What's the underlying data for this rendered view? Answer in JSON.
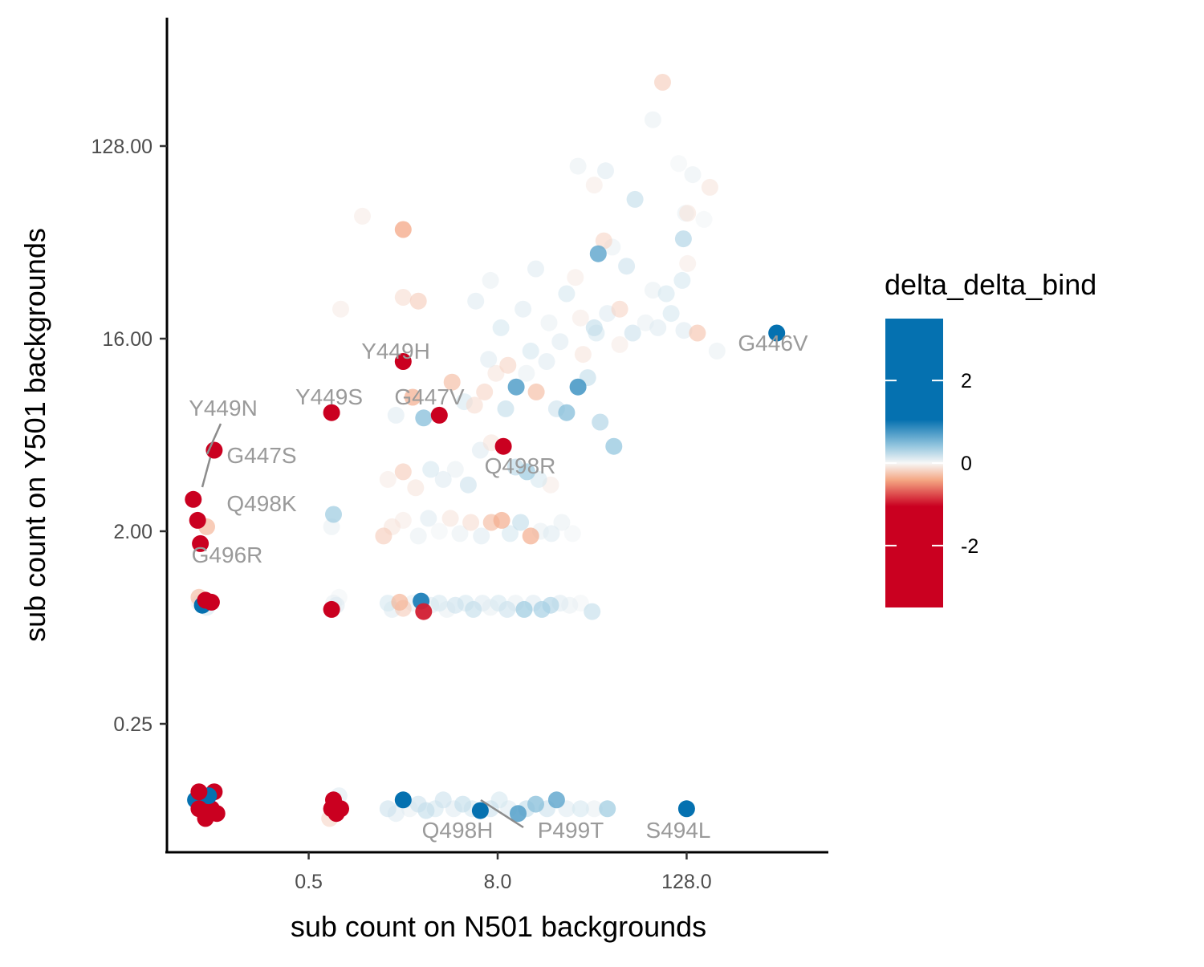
{
  "chart_data": {
    "type": "scatter",
    "xlabel": "sub count on N501 backgrounds",
    "ylabel": "sub count on Y501 backgrounds",
    "x_scale": "log2",
    "y_scale": "log2",
    "xlim": [
      0.0625,
      1024
    ],
    "ylim": [
      0.0625,
      512
    ],
    "x_ticks": [
      {
        "value": 0.5,
        "label": "0.5"
      },
      {
        "value": 8,
        "label": "8.0"
      },
      {
        "value": 128,
        "label": "128.0"
      }
    ],
    "y_ticks": [
      {
        "value": 0.25,
        "label": "0.25"
      },
      {
        "value": 2,
        "label": "2.00"
      },
      {
        "value": 16,
        "label": "16.00"
      },
      {
        "value": 128,
        "label": "128.00"
      }
    ],
    "grid": false,
    "legend": {
      "title": "delta_delta_bind",
      "position": "right",
      "type": "colorbar",
      "min": -3.5,
      "max": 3.5,
      "ticks": [
        {
          "value": 2,
          "label": "2"
        },
        {
          "value": 0,
          "label": "0"
        },
        {
          "value": -2,
          "label": "-2"
        }
      ],
      "colors": {
        "negative": "#ca0020",
        "neutral": "#f7f7f7",
        "positive": "#0571b0"
      }
    },
    "points": [
      {
        "x": 0.1,
        "y": 0.1,
        "v": -3
      },
      {
        "x": 0.11,
        "y": 0.09,
        "v": -3
      },
      {
        "x": 0.095,
        "y": 0.11,
        "v": 2.5
      },
      {
        "x": 0.12,
        "y": 0.1,
        "v": -2.8
      },
      {
        "x": 0.1,
        "y": 0.12,
        "v": -3
      },
      {
        "x": 0.115,
        "y": 0.115,
        "v": 2.8
      },
      {
        "x": 0.13,
        "y": 0.095,
        "v": -3
      },
      {
        "x": 0.105,
        "y": 0.105,
        "v": 1
      },
      {
        "x": 0.125,
        "y": 0.12,
        "v": -2.5
      },
      {
        "x": 0.1,
        "y": 0.92,
        "v": 0.2
      },
      {
        "x": 0.105,
        "y": 0.9,
        "v": 2.8
      },
      {
        "x": 0.11,
        "y": 0.95,
        "v": -3
      },
      {
        "x": 0.12,
        "y": 0.93,
        "v": -3
      },
      {
        "x": 0.1,
        "y": 0.98,
        "v": -0.8
      },
      {
        "x": 0.112,
        "y": 0.88,
        "v": 0.4
      },
      {
        "x": 0.092,
        "y": 2.82,
        "v": -3
      },
      {
        "x": 0.102,
        "y": 1.75,
        "v": -3
      },
      {
        "x": 0.098,
        "y": 2.25,
        "v": -3
      },
      {
        "x": 0.125,
        "y": 4.8,
        "v": -3
      },
      {
        "x": 0.112,
        "y": 2.1,
        "v": -0.9
      },
      {
        "x": 0.7,
        "y": 0.1,
        "v": -3
      },
      {
        "x": 0.75,
        "y": 0.095,
        "v": -3
      },
      {
        "x": 0.72,
        "y": 0.11,
        "v": -3
      },
      {
        "x": 0.8,
        "y": 0.1,
        "v": -2.5
      },
      {
        "x": 0.68,
        "y": 0.09,
        "v": -0.5
      },
      {
        "x": 0.78,
        "y": 0.115,
        "v": 0.3
      },
      {
        "x": 0.72,
        "y": 0.92,
        "v": 0.2
      },
      {
        "x": 0.78,
        "y": 0.98,
        "v": 0.1
      },
      {
        "x": 0.75,
        "y": 0.9,
        "v": 0.3
      },
      {
        "x": 0.7,
        "y": 0.86,
        "v": -3
      },
      {
        "x": 0.7,
        "y": 7.2,
        "v": -3
      },
      {
        "x": 0.8,
        "y": 22,
        "v": -0.2
      },
      {
        "x": 0.7,
        "y": 2.1,
        "v": 0.2
      },
      {
        "x": 0.72,
        "y": 2.4,
        "v": 1
      },
      {
        "x": 1.6,
        "y": 0.1,
        "v": 0.5
      },
      {
        "x": 1.8,
        "y": 0.095,
        "v": 0.3
      },
      {
        "x": 2.0,
        "y": 0.11,
        "v": 2.8
      },
      {
        "x": 2.2,
        "y": 0.1,
        "v": 0.2
      },
      {
        "x": 2.5,
        "y": 0.105,
        "v": 0.5
      },
      {
        "x": 2.8,
        "y": 0.098,
        "v": 0.6
      },
      {
        "x": 3.2,
        "y": 0.1,
        "v": 0.4
      },
      {
        "x": 3.6,
        "y": 0.11,
        "v": 0.5
      },
      {
        "x": 4.2,
        "y": 0.1,
        "v": 0.3
      },
      {
        "x": 4.8,
        "y": 0.105,
        "v": 0.6
      },
      {
        "x": 5.5,
        "y": 0.1,
        "v": 0.4
      },
      {
        "x": 6.2,
        "y": 0.098,
        "v": 2.8
      },
      {
        "x": 7.2,
        "y": 0.1,
        "v": 0.5
      },
      {
        "x": 8.2,
        "y": 0.11,
        "v": 0.4
      },
      {
        "x": 9.4,
        "y": 0.1,
        "v": 0.3
      },
      {
        "x": 10.8,
        "y": 0.095,
        "v": 1.6
      },
      {
        "x": 12.2,
        "y": 0.1,
        "v": 0.6
      },
      {
        "x": 14,
        "y": 0.105,
        "v": 1.2
      },
      {
        "x": 16.5,
        "y": 0.1,
        "v": 0.5
      },
      {
        "x": 19,
        "y": 0.11,
        "v": 1.5
      },
      {
        "x": 22,
        "y": 0.1,
        "v": 0.3
      },
      {
        "x": 27,
        "y": 0.1,
        "v": 0.4
      },
      {
        "x": 33,
        "y": 0.1,
        "v": 0.2
      },
      {
        "x": 40,
        "y": 0.1,
        "v": 1
      },
      {
        "x": 128,
        "y": 0.1,
        "v": 3
      },
      {
        "x": 1.6,
        "y": 0.92,
        "v": 0.4
      },
      {
        "x": 1.7,
        "y": 0.86,
        "v": 0.3
      },
      {
        "x": 1.9,
        "y": 0.93,
        "v": -0.9
      },
      {
        "x": 2.0,
        "y": 0.87,
        "v": -0.6
      },
      {
        "x": 2.3,
        "y": 0.92,
        "v": 0.2
      },
      {
        "x": 2.6,
        "y": 0.94,
        "v": 2
      },
      {
        "x": 2.7,
        "y": 0.84,
        "v": -2
      },
      {
        "x": 3.0,
        "y": 0.9,
        "v": 0.3
      },
      {
        "x": 3.4,
        "y": 0.92,
        "v": 0.4
      },
      {
        "x": 3.8,
        "y": 0.86,
        "v": 0.2
      },
      {
        "x": 4.3,
        "y": 0.9,
        "v": 0.5
      },
      {
        "x": 5.0,
        "y": 0.92,
        "v": 0.4
      },
      {
        "x": 5.6,
        "y": 0.86,
        "v": 0.6
      },
      {
        "x": 6.4,
        "y": 0.92,
        "v": 0.3
      },
      {
        "x": 7.2,
        "y": 0.88,
        "v": 0.2
      },
      {
        "x": 8.1,
        "y": 0.92,
        "v": 0.4
      },
      {
        "x": 9.2,
        "y": 0.86,
        "v": 0.5
      },
      {
        "x": 10.4,
        "y": 0.92,
        "v": 0.2
      },
      {
        "x": 11.8,
        "y": 0.86,
        "v": 1
      },
      {
        "x": 13.5,
        "y": 0.92,
        "v": 0.3
      },
      {
        "x": 15.3,
        "y": 0.86,
        "v": 0.9
      },
      {
        "x": 17.4,
        "y": 0.9,
        "v": 0.8
      },
      {
        "x": 20,
        "y": 0.92,
        "v": 0.3
      },
      {
        "x": 23,
        "y": 0.9,
        "v": 0.2
      },
      {
        "x": 27,
        "y": 0.92,
        "v": 0.1
      },
      {
        "x": 32,
        "y": 0.84,
        "v": 0.6
      },
      {
        "x": 1.5,
        "y": 1.9,
        "v": -0.6
      },
      {
        "x": 1.7,
        "y": 2.1,
        "v": -0.3
      },
      {
        "x": 2.0,
        "y": 2.25,
        "v": -0.2
      },
      {
        "x": 2.5,
        "y": 1.9,
        "v": 0.2
      },
      {
        "x": 2.9,
        "y": 2.3,
        "v": 0.3
      },
      {
        "x": 3.4,
        "y": 2.0,
        "v": 0.1
      },
      {
        "x": 4.0,
        "y": 2.3,
        "v": -0.3
      },
      {
        "x": 4.6,
        "y": 1.95,
        "v": 0.2
      },
      {
        "x": 5.4,
        "y": 2.2,
        "v": -0.4
      },
      {
        "x": 6.3,
        "y": 1.9,
        "v": 0.3
      },
      {
        "x": 7.3,
        "y": 2.2,
        "v": -0.8
      },
      {
        "x": 8.5,
        "y": 2.25,
        "v": -1
      },
      {
        "x": 9.6,
        "y": 1.95,
        "v": 0.4
      },
      {
        "x": 11.2,
        "y": 2.2,
        "v": 0.6
      },
      {
        "x": 13.0,
        "y": 1.9,
        "v": -1
      },
      {
        "x": 15.0,
        "y": 2.0,
        "v": 0.2
      },
      {
        "x": 17.6,
        "y": 1.95,
        "v": 0.3
      },
      {
        "x": 20.5,
        "y": 2.2,
        "v": 0.2
      },
      {
        "x": 24,
        "y": 1.95,
        "v": 0.1
      },
      {
        "x": 1.6,
        "y": 3.5,
        "v": -0.2
      },
      {
        "x": 2.0,
        "y": 3.8,
        "v": -0.6
      },
      {
        "x": 2.4,
        "y": 3.2,
        "v": -0.3
      },
      {
        "x": 3.0,
        "y": 3.9,
        "v": 0.4
      },
      {
        "x": 3.6,
        "y": 3.5,
        "v": 0.3
      },
      {
        "x": 4.3,
        "y": 3.9,
        "v": 0.2
      },
      {
        "x": 5.2,
        "y": 3.3,
        "v": 0.5
      },
      {
        "x": 6.2,
        "y": 4.8,
        "v": 0.3
      },
      {
        "x": 7.3,
        "y": 5.2,
        "v": -0.3
      },
      {
        "x": 8.7,
        "y": 5.0,
        "v": -3
      },
      {
        "x": 10.4,
        "y": 4.0,
        "v": 0.7
      },
      {
        "x": 12.3,
        "y": 3.8,
        "v": 1
      },
      {
        "x": 14.6,
        "y": 3.5,
        "v": 0.4
      },
      {
        "x": 17.4,
        "y": 3.3,
        "v": -0.2
      },
      {
        "x": 1.8,
        "y": 7.0,
        "v": 0.3
      },
      {
        "x": 2.3,
        "y": 8.5,
        "v": -1
      },
      {
        "x": 2.7,
        "y": 6.8,
        "v": 1.2
      },
      {
        "x": 3.4,
        "y": 7.0,
        "v": -3
      },
      {
        "x": 4.1,
        "y": 10,
        "v": -0.8
      },
      {
        "x": 4.9,
        "y": 8.1,
        "v": 0.4
      },
      {
        "x": 5.7,
        "y": 7.8,
        "v": -0.4
      },
      {
        "x": 6.6,
        "y": 9.0,
        "v": -0.5
      },
      {
        "x": 7.8,
        "y": 11,
        "v": -0.3
      },
      {
        "x": 9.0,
        "y": 7.5,
        "v": 0.6
      },
      {
        "x": 10.5,
        "y": 9.5,
        "v": 1.6
      },
      {
        "x": 12.2,
        "y": 11,
        "v": 0.2
      },
      {
        "x": 14.1,
        "y": 9.0,
        "v": -0.8
      },
      {
        "x": 16.4,
        "y": 12.5,
        "v": 0.3
      },
      {
        "x": 19,
        "y": 7.5,
        "v": 0.5
      },
      {
        "x": 22,
        "y": 7.2,
        "v": 1.2
      },
      {
        "x": 26,
        "y": 9.5,
        "v": 1.7
      },
      {
        "x": 30,
        "y": 10.5,
        "v": 0.6
      },
      {
        "x": 36,
        "y": 6.5,
        "v": 0.8
      },
      {
        "x": 44,
        "y": 5.0,
        "v": 1.1
      },
      {
        "x": 2.0,
        "y": 12.5,
        "v": -3
      },
      {
        "x": 7.0,
        "y": 12.8,
        "v": 0.3
      },
      {
        "x": 9.3,
        "y": 12,
        "v": -0.5
      },
      {
        "x": 13.0,
        "y": 14,
        "v": 0.4
      },
      {
        "x": 20,
        "y": 15.5,
        "v": 0.3
      },
      {
        "x": 28,
        "y": 13.5,
        "v": -0.3
      },
      {
        "x": 34,
        "y": 17,
        "v": 0.4
      },
      {
        "x": 48,
        "y": 15,
        "v": -0.2
      },
      {
        "x": 2.0,
        "y": 25,
        "v": -0.4
      },
      {
        "x": 2.5,
        "y": 24,
        "v": -0.6
      },
      {
        "x": 5.8,
        "y": 24,
        "v": 0.3
      },
      {
        "x": 8.4,
        "y": 18,
        "v": 0.4
      },
      {
        "x": 11.6,
        "y": 22,
        "v": 0.3
      },
      {
        "x": 17,
        "y": 19,
        "v": 0.2
      },
      {
        "x": 22,
        "y": 26,
        "v": 0.4
      },
      {
        "x": 27,
        "y": 20,
        "v": -0.2
      },
      {
        "x": 33,
        "y": 18,
        "v": 0.6
      },
      {
        "x": 40,
        "y": 21,
        "v": 0.3
      },
      {
        "x": 48,
        "y": 22,
        "v": -0.5
      },
      {
        "x": 58,
        "y": 17,
        "v": 0.5
      },
      {
        "x": 70,
        "y": 19,
        "v": 0.2
      },
      {
        "x": 84,
        "y": 18,
        "v": 0.3
      },
      {
        "x": 102,
        "y": 21,
        "v": 0.4
      },
      {
        "x": 123,
        "y": 17.5,
        "v": 0.3
      },
      {
        "x": 150,
        "y": 17,
        "v": -0.7
      },
      {
        "x": 200,
        "y": 14,
        "v": 0.2
      },
      {
        "x": 7.2,
        "y": 30,
        "v": 0.2
      },
      {
        "x": 14,
        "y": 34,
        "v": 0.3
      },
      {
        "x": 25,
        "y": 31,
        "v": -0.2
      },
      {
        "x": 35,
        "y": 40,
        "v": 1.5
      },
      {
        "x": 43,
        "y": 43,
        "v": 0.2
      },
      {
        "x": 53,
        "y": 35,
        "v": 0.5
      },
      {
        "x": 78,
        "y": 27,
        "v": 0.2
      },
      {
        "x": 95,
        "y": 26,
        "v": 0.4
      },
      {
        "x": 120,
        "y": 30,
        "v": 0.4
      },
      {
        "x": 130,
        "y": 36,
        "v": -0.2
      },
      {
        "x": 122,
        "y": 47,
        "v": 0.8
      },
      {
        "x": 38,
        "y": 46,
        "v": -0.5
      },
      {
        "x": 2.0,
        "y": 52,
        "v": -1.1
      },
      {
        "x": 1.1,
        "y": 60,
        "v": -0.2
      },
      {
        "x": 60,
        "y": 72,
        "v": 0.6
      },
      {
        "x": 126,
        "y": 62,
        "v": 0.2
      },
      {
        "x": 130,
        "y": 62,
        "v": -0.3
      },
      {
        "x": 165,
        "y": 58,
        "v": 0.1
      },
      {
        "x": 180,
        "y": 82,
        "v": -0.3
      },
      {
        "x": 78,
        "y": 170,
        "v": 0.2
      },
      {
        "x": 114,
        "y": 106,
        "v": 0.1
      },
      {
        "x": 140,
        "y": 94,
        "v": 0.2
      },
      {
        "x": 39,
        "y": 98,
        "v": 0.3
      },
      {
        "x": 33,
        "y": 84,
        "v": -0.2
      },
      {
        "x": 26,
        "y": 103,
        "v": 0.2
      },
      {
        "x": 480,
        "y": 17,
        "v": 3
      },
      {
        "x": 90,
        "y": 255,
        "v": -0.6
      }
    ],
    "annotations": [
      {
        "text": "Y449H"
      },
      {
        "text": "Y449S"
      },
      {
        "text": "G447V"
      },
      {
        "text": "Y449N"
      },
      {
        "text": "G447S"
      },
      {
        "text": "Q498K"
      },
      {
        "text": "G496R"
      },
      {
        "text": "Q498R"
      },
      {
        "text": "G446V"
      },
      {
        "text": "Q498H"
      },
      {
        "text": "P499T"
      },
      {
        "text": "S494L"
      }
    ]
  }
}
